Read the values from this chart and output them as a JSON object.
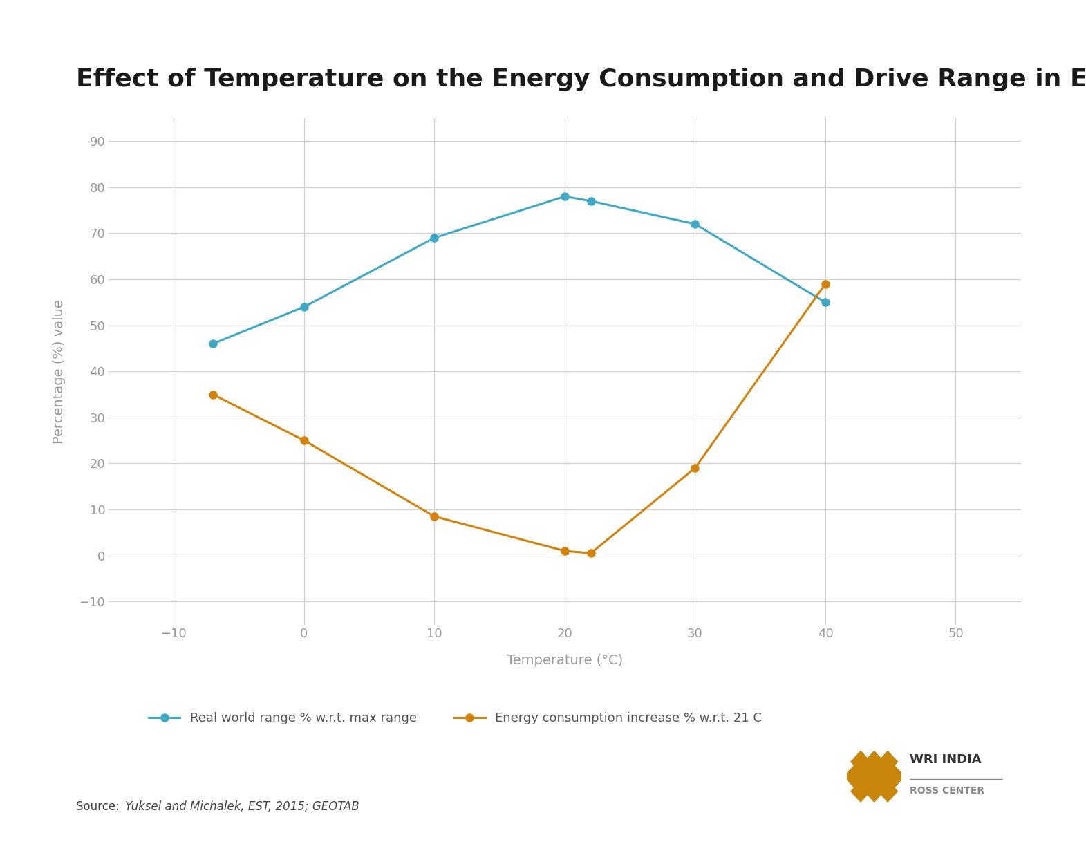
{
  "title": "Effect of Temperature on the Energy Consumption and Drive Range in E-Car",
  "xlabel": "Temperature (°C)",
  "ylabel": "Percentage (%) value",
  "xlim": [
    -15,
    55
  ],
  "ylim": [
    -15,
    95
  ],
  "xticks": [
    -10,
    0,
    10,
    20,
    30,
    40,
    50
  ],
  "yticks": [
    -10,
    0,
    10,
    20,
    30,
    40,
    50,
    60,
    70,
    80,
    90
  ],
  "blue_line": {
    "x": [
      -7,
      0,
      10,
      20,
      22,
      30,
      40
    ],
    "y": [
      46,
      54,
      69,
      78,
      77,
      72,
      55
    ],
    "color": "#3fa9c5",
    "label": "Real world range % w.r.t. max range"
  },
  "orange_line": {
    "x": [
      -7,
      0,
      10,
      20,
      22,
      30,
      40
    ],
    "y": [
      35,
      25,
      8.5,
      1,
      0.5,
      19,
      59
    ],
    "color": "#d4820a",
    "label": "Energy consumption increase % w.r.t. 21 C"
  },
  "source_text": "Source: ",
  "source_italic": "Yuksel and Michalek, EST, 2015; GEOTAB",
  "background_color": "#ffffff",
  "grid_color": "#d0d0d0",
  "tick_color": "#999999",
  "axis_label_color": "#999999",
  "title_fontsize": 26,
  "label_fontsize": 14,
  "tick_fontsize": 13,
  "legend_fontsize": 13,
  "source_fontsize": 12,
  "marker_size": 8,
  "line_width": 2.2
}
